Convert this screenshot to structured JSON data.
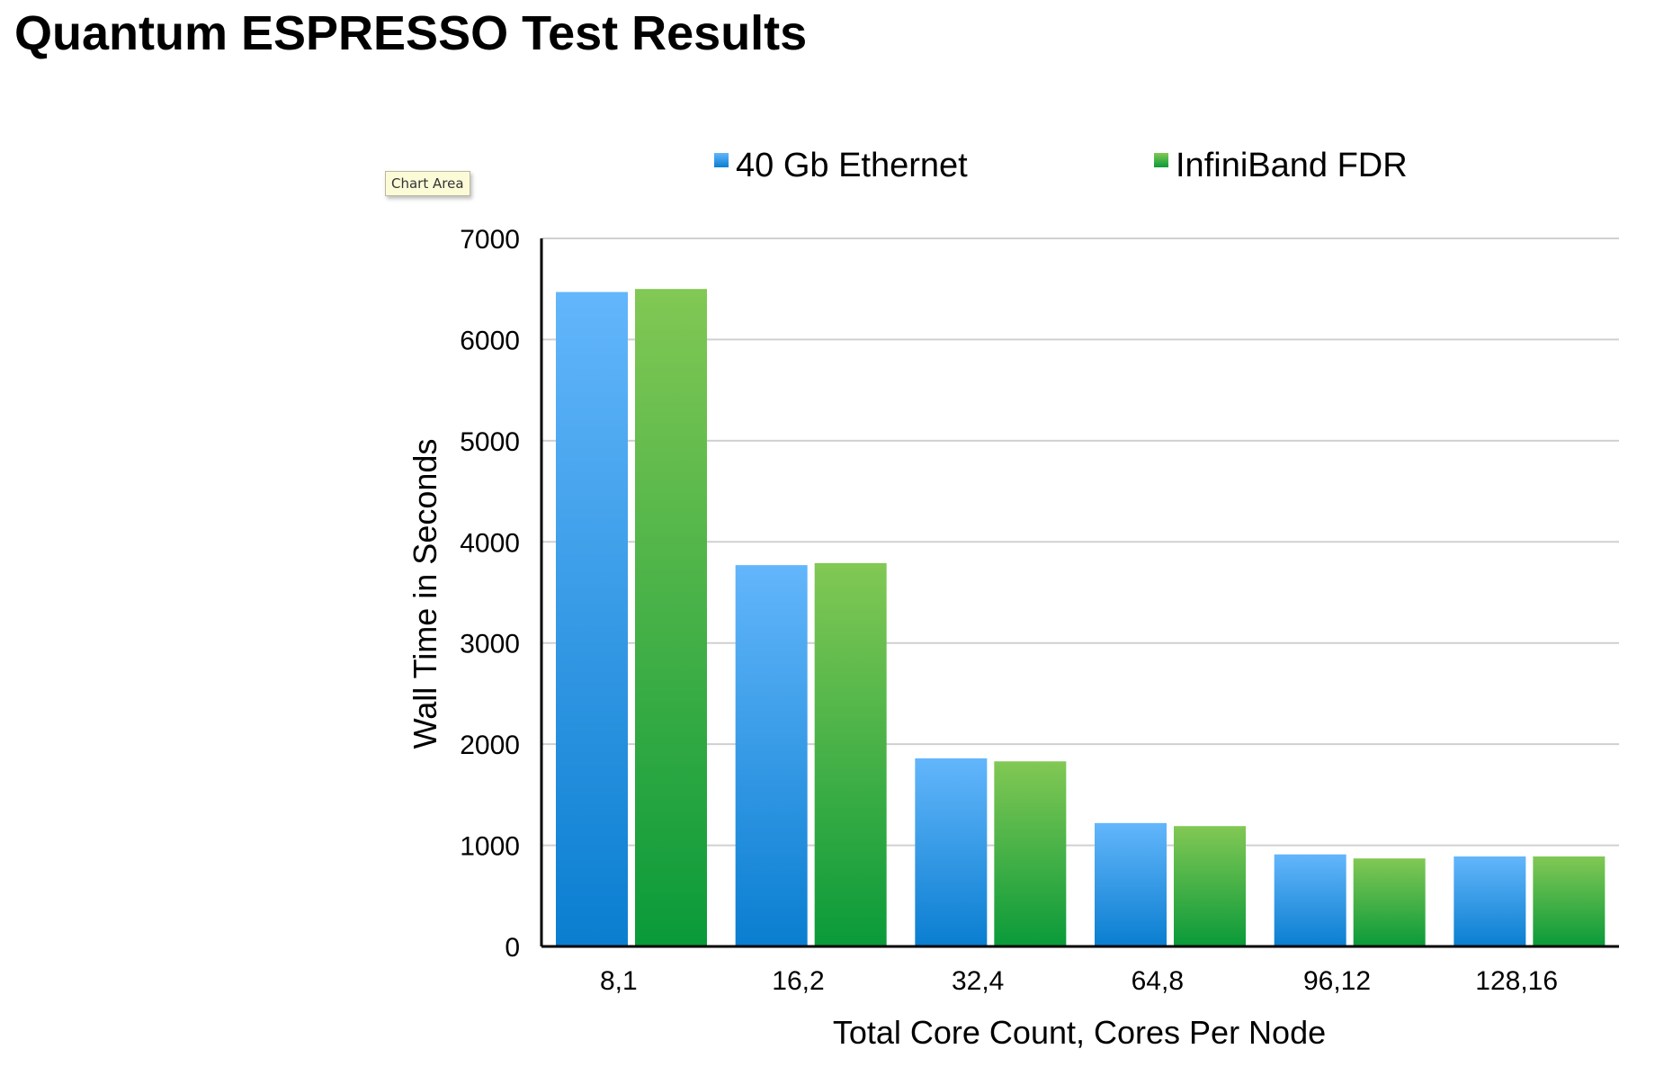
{
  "page": {
    "title": "Quantum ESPRESSO Test Results",
    "tooltip": "Chart Area"
  },
  "chart_data": {
    "type": "bar",
    "title": "",
    "xlabel": "Total Core Count, Cores Per Node",
    "ylabel": "Wall Time in Seconds",
    "ylim": [
      0,
      7000
    ],
    "yticks": [
      0,
      1000,
      2000,
      3000,
      4000,
      5000,
      6000,
      7000
    ],
    "grid": true,
    "legend_position": "top",
    "categories": [
      "8,1",
      "16,2",
      "32,4",
      "64,8",
      "96,12",
      "128,16"
    ],
    "series": [
      {
        "name": "40 Gb Ethernet",
        "color_top": "#63b6fb",
        "color_bottom": "#0a7ed0",
        "values": [
          6470,
          3770,
          1860,
          1220,
          910,
          890
        ]
      },
      {
        "name": "InfiniBand FDR",
        "color_top": "#82c854",
        "color_bottom": "#0a9a3a",
        "values": [
          6500,
          3790,
          1830,
          1190,
          870,
          890
        ]
      }
    ]
  }
}
